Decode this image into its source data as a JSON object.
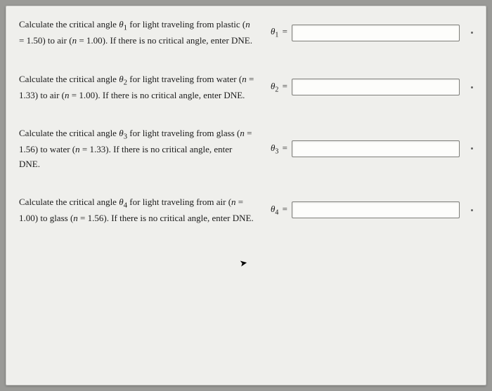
{
  "questions": [
    {
      "text_a": "Calculate the critical angle ",
      "theta_n": "1",
      "text_b": " for light traveling from plastic (",
      "n1_label": "n",
      "n1_val": " = 1.50",
      "text_c": ") to air (",
      "n2_label": "n",
      "n2_val": " = 1.00",
      "text_d": "). If there is no critical angle, enter DNE.",
      "ans_theta_sub": "1",
      "value": ""
    },
    {
      "text_a": "Calculate the critical angle ",
      "theta_n": "2",
      "text_b": " for light traveling from water (",
      "n1_label": "n",
      "n1_val": " = 1.33",
      "text_c": ") to air (",
      "n2_label": "n",
      "n2_val": " = 1.00",
      "text_d": "). If there is no critical angle, enter DNE.",
      "ans_theta_sub": "2",
      "value": ""
    },
    {
      "text_a": "Calculate the critical angle ",
      "theta_n": "3",
      "text_b": " for light traveling from glass (",
      "n1_label": "n",
      "n1_val": " = 1.56",
      "text_c": ") to water (",
      "n2_label": "n",
      "n2_val": " = 1.33",
      "text_d": "). If there is no critical angle, enter DNE.",
      "ans_theta_sub": "3",
      "value": ""
    },
    {
      "text_a": "Calculate the critical angle ",
      "theta_n": "4",
      "text_b": " for light traveling from air (",
      "n1_label": "n",
      "n1_val": " = 1.00",
      "text_c": ") to glass (",
      "n2_label": "n",
      "n2_val": " = 1.56",
      "text_d": "). If there is no critical angle, enter DNE.",
      "ans_theta_sub": "4",
      "value": ""
    }
  ]
}
